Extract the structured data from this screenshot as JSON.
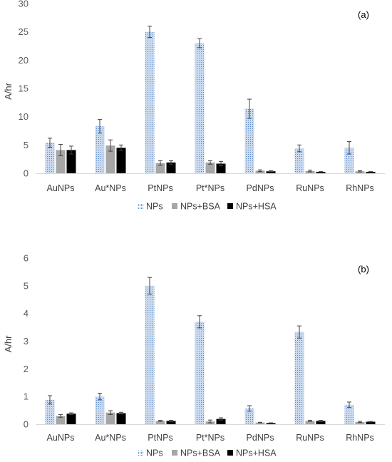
{
  "colors": {
    "nps_fill": "#c9d9ee",
    "nps_dot": "#5b88c4",
    "bsa": "#a6a6a6",
    "hsa": "#000000",
    "axis": "#d9d9d9",
    "error_bar": "#404040"
  },
  "chart_data": [
    {
      "type": "bar",
      "panel_label": "(a)",
      "ylabel": "A/hr",
      "ylim": [
        0,
        30
      ],
      "yticks": [
        0,
        5,
        10,
        15,
        20,
        25,
        30
      ],
      "grid": false,
      "legend_position": "bottom",
      "categories": [
        "AuNPs",
        "Au*NPs",
        "PtNPs",
        "Pt*NPs",
        "PdNPs",
        "RuNPs",
        "RhNPs"
      ],
      "series": [
        {
          "name": "NPs",
          "values": [
            5.4,
            8.3,
            25.0,
            23.0,
            11.4,
            4.4,
            4.5
          ],
          "errors": [
            0.8,
            1.2,
            1.0,
            0.8,
            1.7,
            0.6,
            1.1
          ]
        },
        {
          "name": "NPs+BSA",
          "values": [
            4.1,
            4.9,
            1.8,
            1.9,
            0.45,
            0.4,
            0.35
          ],
          "errors": [
            1.0,
            1.0,
            0.4,
            0.3,
            0.15,
            0.15,
            0.1
          ]
        },
        {
          "name": "NPs+HSA",
          "values": [
            4.1,
            4.5,
            1.9,
            1.7,
            0.35,
            0.25,
            0.25
          ],
          "errors": [
            0.7,
            0.5,
            0.3,
            0.4,
            0.1,
            0.05,
            0.05
          ]
        }
      ]
    },
    {
      "type": "bar",
      "panel_label": "(b)",
      "ylabel": "A/hr",
      "ylim": [
        0,
        6
      ],
      "yticks": [
        0,
        1,
        2,
        3,
        4,
        5,
        6
      ],
      "grid": false,
      "legend_position": "bottom",
      "categories": [
        "AuNPs",
        "Au*NPs",
        "PtNPs",
        "Pt*NPs",
        "PdNPs",
        "RuNPs",
        "RhNPs"
      ],
      "series": [
        {
          "name": "NPs",
          "values": [
            0.88,
            1.0,
            5.0,
            3.7,
            0.57,
            3.33,
            0.7
          ],
          "errors": [
            0.15,
            0.12,
            0.3,
            0.22,
            0.1,
            0.22,
            0.1
          ]
        },
        {
          "name": "NPs+BSA",
          "values": [
            0.3,
            0.42,
            0.12,
            0.1,
            0.06,
            0.12,
            0.08
          ],
          "errors": [
            0.05,
            0.07,
            0.02,
            0.05,
            0.01,
            0.02,
            0.02
          ]
        },
        {
          "name": "NPs+HSA",
          "values": [
            0.38,
            0.4,
            0.12,
            0.19,
            0.04,
            0.12,
            0.09
          ],
          "errors": [
            0.03,
            0.03,
            0.02,
            0.04,
            0.01,
            0.02,
            0.01
          ]
        }
      ]
    }
  ]
}
